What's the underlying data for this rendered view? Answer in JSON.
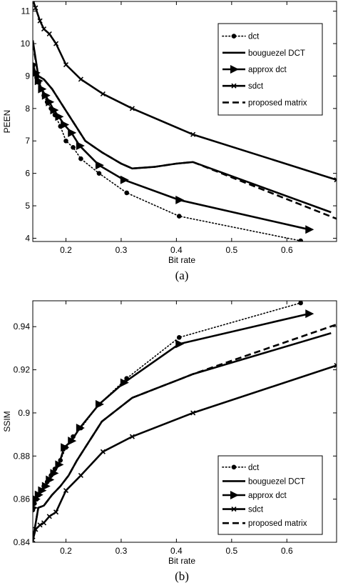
{
  "chart_data": [
    {
      "type": "line",
      "caption": "(a)",
      "xlabel": "Bit rate",
      "ylabel": "PEEN",
      "xlim": [
        0.14,
        0.69
      ],
      "ylim": [
        3.9,
        11.3
      ],
      "xticks": [
        0.2,
        0.3,
        0.4,
        0.5,
        0.6
      ],
      "yticks": [
        4,
        5,
        6,
        7,
        8,
        9,
        10,
        11
      ],
      "legend_position": "top-right",
      "series": [
        {
          "name": "dct",
          "style": "dotted-circle",
          "x": [
            0.14,
            0.143,
            0.147,
            0.151,
            0.155,
            0.16,
            0.166,
            0.173,
            0.18,
            0.19,
            0.2,
            0.213,
            0.227,
            0.26,
            0.31,
            0.405,
            0.625
          ],
          "y": [
            9.3,
            9.1,
            8.95,
            8.8,
            8.6,
            8.4,
            8.2,
            8.0,
            7.8,
            7.45,
            7.0,
            6.8,
            6.45,
            6.0,
            5.4,
            4.68,
            3.92
          ]
        },
        {
          "name": "bouguezel DCT",
          "style": "solid",
          "x": [
            0.14,
            0.15,
            0.16,
            0.175,
            0.19,
            0.205,
            0.22,
            0.235,
            0.265,
            0.3,
            0.32,
            0.36,
            0.4,
            0.43,
            0.68
          ],
          "y": [
            10.1,
            9.0,
            8.9,
            8.6,
            8.2,
            7.8,
            7.4,
            7.0,
            6.65,
            6.3,
            6.15,
            6.2,
            6.3,
            6.35,
            4.8
          ]
        },
        {
          "name": "approx dct",
          "style": "solid-triangle",
          "x": [
            0.14,
            0.145,
            0.15,
            0.156,
            0.163,
            0.17,
            0.178,
            0.187,
            0.197,
            0.21,
            0.225,
            0.26,
            0.305,
            0.405,
            0.64
          ],
          "y": [
            9.35,
            9.1,
            8.85,
            8.6,
            8.4,
            8.2,
            7.95,
            7.75,
            7.5,
            7.25,
            6.85,
            6.25,
            5.8,
            5.18,
            4.27
          ]
        },
        {
          "name": "sdct",
          "style": "solid-x",
          "x": [
            0.14,
            0.145,
            0.153,
            0.16,
            0.17,
            0.182,
            0.2,
            0.227,
            0.267,
            0.32,
            0.43,
            0.69
          ],
          "y": [
            11.35,
            11.1,
            10.7,
            10.45,
            10.3,
            10.0,
            9.35,
            8.9,
            8.45,
            8.0,
            7.2,
            5.8
          ]
        },
        {
          "name": "proposed matrix",
          "style": "dashed",
          "x": [
            0.14,
            0.15,
            0.16,
            0.175,
            0.19,
            0.205,
            0.22,
            0.235,
            0.265,
            0.3,
            0.32,
            0.36,
            0.4,
            0.43,
            0.69
          ],
          "y": [
            10.0,
            9.0,
            8.9,
            8.6,
            8.2,
            7.8,
            7.4,
            7.0,
            6.65,
            6.3,
            6.15,
            6.2,
            6.3,
            6.35,
            4.6
          ]
        }
      ]
    },
    {
      "type": "line",
      "caption": "(b)",
      "xlabel": "Bit rate",
      "ylabel": "SSIM",
      "xlim": [
        0.14,
        0.69
      ],
      "ylim": [
        0.84,
        0.952
      ],
      "xticks": [
        0.2,
        0.3,
        0.4,
        0.5,
        0.6
      ],
      "yticks": [
        0.84,
        0.86,
        0.88,
        0.9,
        0.92,
        0.94
      ],
      "legend_position": "bottom-right",
      "series": [
        {
          "name": "dct",
          "style": "dotted-circle",
          "x": [
            0.14,
            0.143,
            0.147,
            0.151,
            0.155,
            0.16,
            0.166,
            0.173,
            0.18,
            0.19,
            0.2,
            0.213,
            0.227,
            0.26,
            0.31,
            0.405,
            0.625
          ],
          "y": [
            0.855,
            0.858,
            0.86,
            0.862,
            0.864,
            0.866,
            0.868,
            0.871,
            0.874,
            0.878,
            0.884,
            0.889,
            0.893,
            0.904,
            0.916,
            0.935,
            0.951
          ]
        },
        {
          "name": "bouguezel DCT",
          "style": "solid",
          "x": [
            0.14,
            0.15,
            0.16,
            0.175,
            0.19,
            0.205,
            0.22,
            0.235,
            0.265,
            0.3,
            0.32,
            0.36,
            0.4,
            0.43,
            0.68
          ],
          "y": [
            0.841,
            0.856,
            0.857,
            0.862,
            0.866,
            0.871,
            0.878,
            0.884,
            0.896,
            0.903,
            0.907,
            0.911,
            0.915,
            0.918,
            0.937
          ]
        },
        {
          "name": "approx dct",
          "style": "solid-triangle",
          "x": [
            0.14,
            0.145,
            0.15,
            0.156,
            0.163,
            0.17,
            0.178,
            0.187,
            0.197,
            0.21,
            0.225,
            0.26,
            0.305,
            0.405,
            0.64
          ],
          "y": [
            0.856,
            0.86,
            0.862,
            0.864,
            0.866,
            0.869,
            0.872,
            0.876,
            0.884,
            0.887,
            0.893,
            0.904,
            0.914,
            0.932,
            0.946
          ]
        },
        {
          "name": "sdct",
          "style": "solid-x",
          "x": [
            0.14,
            0.145,
            0.153,
            0.16,
            0.17,
            0.182,
            0.2,
            0.227,
            0.267,
            0.32,
            0.43,
            0.69
          ],
          "y": [
            0.841,
            0.846,
            0.848,
            0.849,
            0.852,
            0.854,
            0.864,
            0.871,
            0.882,
            0.889,
            0.9,
            0.922
          ]
        },
        {
          "name": "proposed matrix",
          "style": "dashed",
          "x": [
            0.14,
            0.15,
            0.16,
            0.175,
            0.19,
            0.205,
            0.22,
            0.235,
            0.265,
            0.3,
            0.32,
            0.36,
            0.4,
            0.43,
            0.69
          ],
          "y": [
            0.841,
            0.856,
            0.857,
            0.862,
            0.866,
            0.871,
            0.878,
            0.884,
            0.896,
            0.903,
            0.907,
            0.911,
            0.915,
            0.918,
            0.941
          ]
        }
      ]
    }
  ]
}
